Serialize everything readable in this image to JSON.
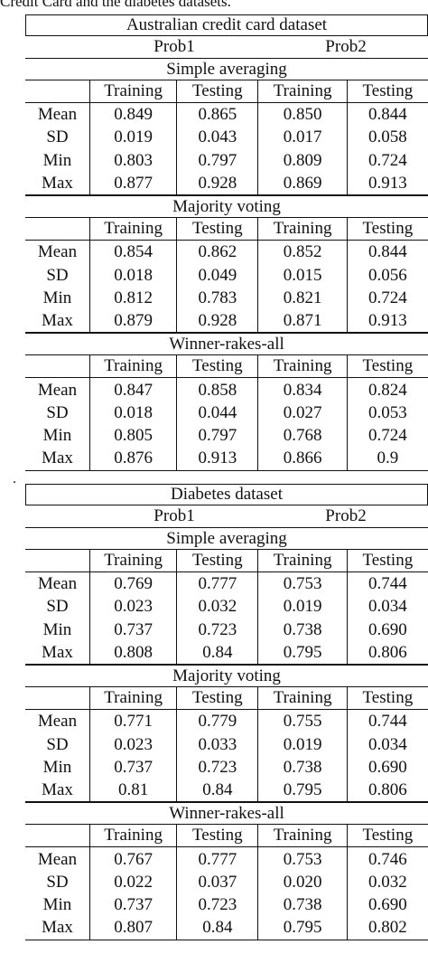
{
  "caption": "Credit Card and the diabetes datasets.",
  "separator": ".",
  "columns": {
    "group1": "Prob1",
    "group2": "Prob2",
    "headers": [
      "Training",
      "Testing",
      "Training",
      "Testing"
    ]
  },
  "tables": [
    {
      "title": "Australian credit card dataset",
      "sections": [
        {
          "name": "Simple averaging",
          "rows": [
            {
              "label": "Mean",
              "values": [
                "0.849",
                "0.865",
                "0.850",
                "0.844"
              ]
            },
            {
              "label": "SD",
              "values": [
                "0.019",
                "0.043",
                "0.017",
                "0.058"
              ]
            },
            {
              "label": "Min",
              "values": [
                "0.803",
                "0.797",
                "0.809",
                "0.724"
              ]
            },
            {
              "label": "Max",
              "values": [
                "0.877",
                "0.928",
                "0.869",
                "0.913"
              ]
            }
          ]
        },
        {
          "name": "Majority voting",
          "rows": [
            {
              "label": "Mean",
              "values": [
                "0.854",
                "0.862",
                "0.852",
                "0.844"
              ]
            },
            {
              "label": "SD",
              "values": [
                "0.018",
                "0.049",
                "0.015",
                "0.056"
              ]
            },
            {
              "label": "Min",
              "values": [
                "0.812",
                "0.783",
                "0.821",
                "0.724"
              ]
            },
            {
              "label": "Max",
              "values": [
                "0.879",
                "0.928",
                "0.871",
                "0.913"
              ]
            }
          ]
        },
        {
          "name": "Winner-rakes-all",
          "rows": [
            {
              "label": "Mean",
              "values": [
                "0.847",
                "0.858",
                "0.834",
                "0.824"
              ]
            },
            {
              "label": "SD",
              "values": [
                "0.018",
                "0.044",
                "0.027",
                "0.053"
              ]
            },
            {
              "label": "Min",
              "values": [
                "0.805",
                "0.797",
                "0.768",
                "0.724"
              ]
            },
            {
              "label": "Max",
              "values": [
                "0.876",
                "0.913",
                "0.866",
                "0.9"
              ]
            }
          ]
        }
      ]
    },
    {
      "title": "Diabetes dataset",
      "sections": [
        {
          "name": "Simple averaging",
          "rows": [
            {
              "label": "Mean",
              "values": [
                "0.769",
                "0.777",
                "0.753",
                "0.744"
              ]
            },
            {
              "label": "SD",
              "values": [
                "0.023",
                "0.032",
                "0.019",
                "0.034"
              ]
            },
            {
              "label": "Min",
              "values": [
                "0.737",
                "0.723",
                "0.738",
                "0.690"
              ]
            },
            {
              "label": "Max",
              "values": [
                "0.808",
                "0.84",
                "0.795",
                "0.806"
              ]
            }
          ]
        },
        {
          "name": "Majority voting",
          "rows": [
            {
              "label": "Mean",
              "values": [
                "0.771",
                "0.779",
                "0.755",
                "0.744"
              ]
            },
            {
              "label": "SD",
              "values": [
                "0.023",
                "0.033",
                "0.019",
                "0.034"
              ]
            },
            {
              "label": "Min",
              "values": [
                "0.737",
                "0.723",
                "0.738",
                "0.690"
              ]
            },
            {
              "label": "Max",
              "values": [
                "0.81",
                "0.84",
                "0.795",
                "0.806"
              ]
            }
          ]
        },
        {
          "name": "Winner-rakes-all",
          "rows": [
            {
              "label": "Mean",
              "values": [
                "0.767",
                "0.777",
                "0.753",
                "0.746"
              ]
            },
            {
              "label": "SD",
              "values": [
                "0.022",
                "0.037",
                "0.020",
                "0.032"
              ]
            },
            {
              "label": "Min",
              "values": [
                "0.737",
                "0.723",
                "0.738",
                "0.690"
              ]
            },
            {
              "label": "Max",
              "values": [
                "0.807",
                "0.84",
                "0.795",
                "0.802"
              ]
            }
          ]
        }
      ]
    }
  ]
}
